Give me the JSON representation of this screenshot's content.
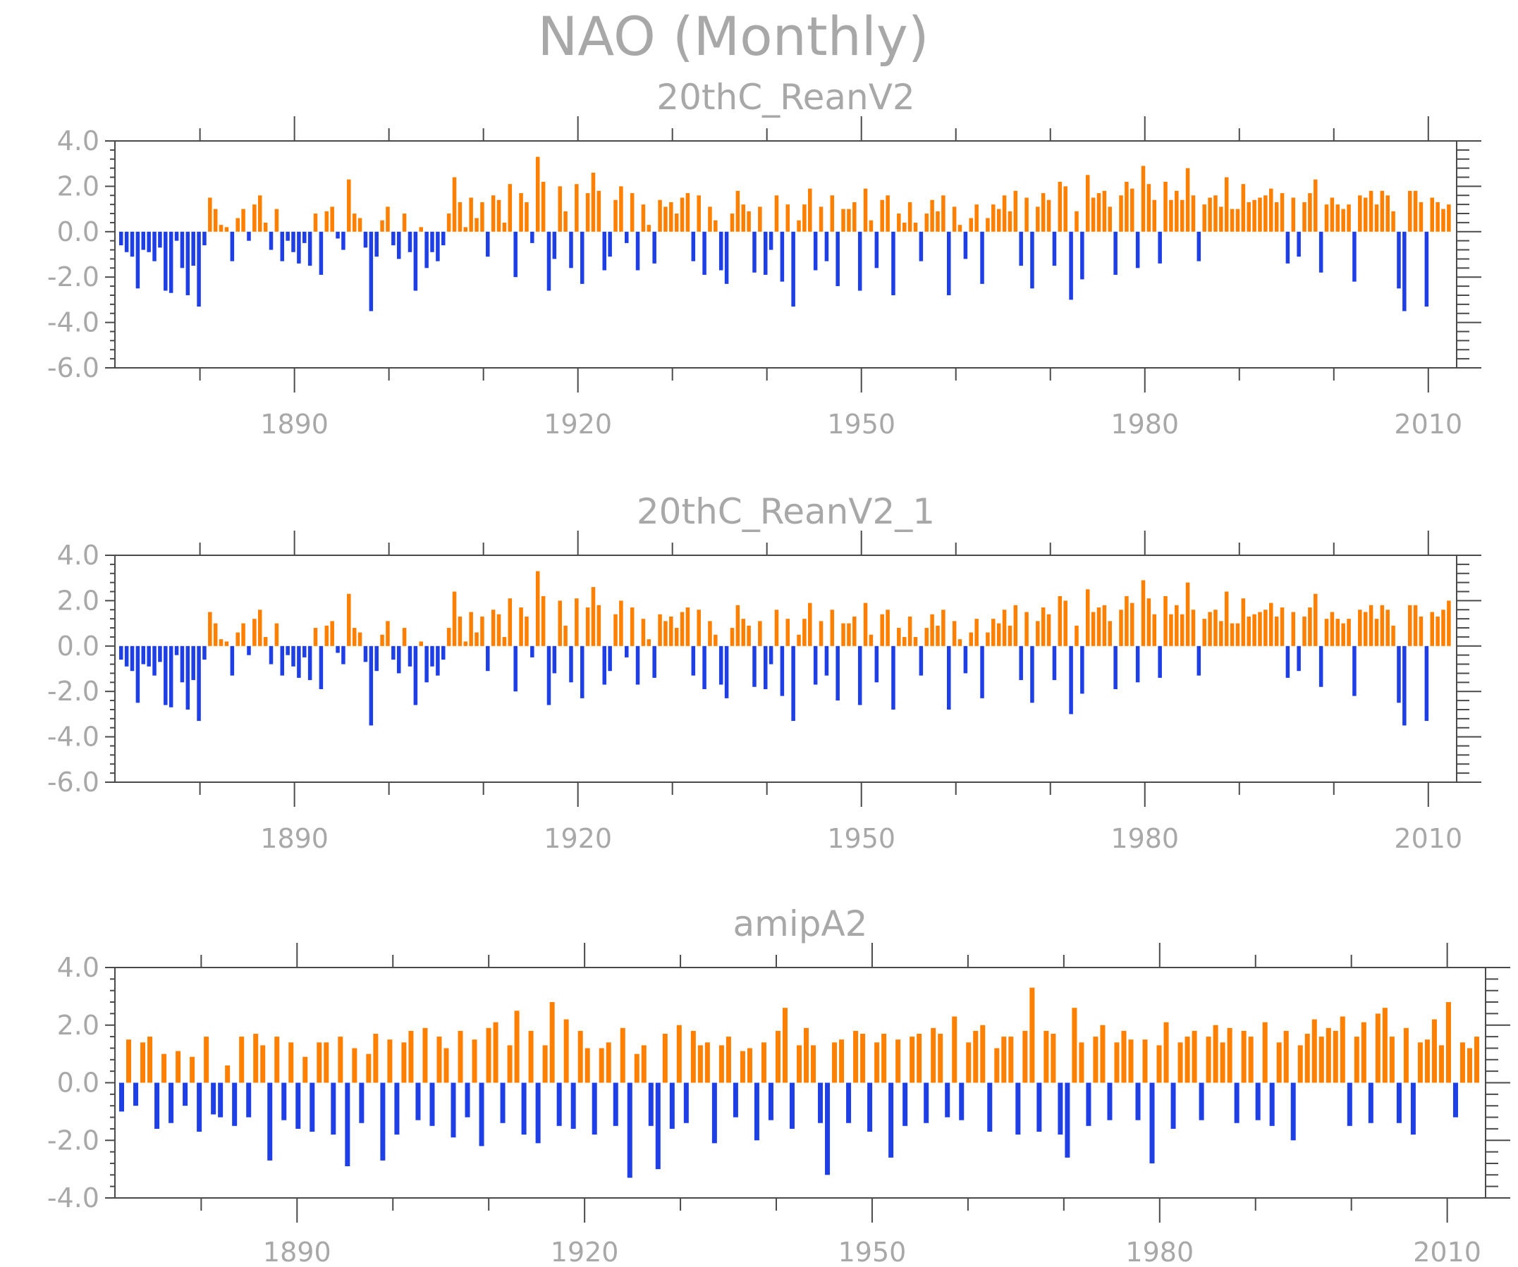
{
  "title": "NAO (Monthly)",
  "colors": {
    "positive": "#ff8000",
    "negative": "#1f3fe6",
    "axis": "#4a4a4a",
    "text": "#a8a8a8"
  },
  "chart_data": [
    {
      "type": "bar",
      "title": "20thC_ReanV2",
      "xlabel": "",
      "ylabel": "",
      "xlim": [
        1871,
        2013
      ],
      "ylim": [
        -6,
        4
      ],
      "yticks": [
        "-6.0",
        "-4.0",
        "-2.0",
        "0.0",
        "2.0",
        "4.0"
      ],
      "xticks": [
        "1890",
        "1920",
        "1950",
        "1980",
        "2010"
      ],
      "series": [
        {
          "values": [
            -0.6,
            -0.9,
            -1.1,
            -2.5,
            -0.8,
            -0.9,
            -1.3,
            -0.7,
            -2.6,
            -2.7,
            -0.4,
            -1.6,
            -2.8,
            -1.5,
            -3.3,
            -0.6,
            1.5,
            1.0,
            0.3,
            0.2,
            -1.3,
            0.6,
            1.0,
            -0.4,
            1.2,
            1.6,
            0.4,
            -0.8,
            1.0,
            -1.3,
            -0.4,
            -0.9,
            -1.4,
            -0.5,
            -1.5,
            0.8,
            -1.9,
            0.9,
            1.1,
            -0.3,
            -0.8,
            2.3,
            0.8,
            0.6,
            -0.7,
            -3.5,
            -1.1,
            0.5,
            1.1,
            -0.6,
            -1.2,
            0.8,
            -0.9,
            -2.6,
            0.2,
            -1.6,
            -0.9,
            -1.3,
            -0.6,
            0.8,
            2.4,
            1.3,
            0.2,
            1.5,
            0.6,
            1.3,
            -1.1,
            1.6,
            1.4,
            0.4,
            2.1,
            -2.0,
            1.7,
            1.3,
            -0.5,
            3.3,
            2.2,
            -2.6,
            -1.2,
            2.0,
            0.9,
            -1.6,
            2.1,
            -2.3,
            1.7,
            2.6,
            1.8,
            -1.7,
            -1.1,
            1.4,
            2.0,
            -0.5,
            1.7,
            -1.7,
            1.2,
            0.3,
            -1.4,
            1.4,
            1.1,
            1.3,
            0.8,
            1.5,
            1.7,
            -1.3,
            1.6,
            -1.9,
            1.1,
            0.5,
            -1.7,
            -2.3,
            0.8,
            1.8,
            1.2,
            0.9,
            -1.8,
            1.1,
            -1.9,
            -0.8,
            1.6,
            -2.2,
            1.2,
            -3.3,
            0.5,
            1.2,
            1.9,
            -1.7,
            1.1,
            -1.3,
            1.6,
            -2.4,
            1.0,
            1.0,
            1.3,
            -2.6,
            1.9,
            0.5,
            -1.6,
            1.4,
            1.6,
            -2.8,
            0.8,
            0.4,
            1.3,
            0.4,
            -1.3,
            0.8,
            1.4,
            0.9,
            1.6,
            -2.8,
            1.1,
            0.3,
            -1.2,
            0.6,
            1.2,
            -2.3,
            0.6,
            1.2,
            1.0,
            1.6,
            0.9,
            1.8,
            -1.5,
            1.5,
            -2.5,
            1.1,
            1.7,
            1.4,
            -1.5,
            2.2,
            2.0,
            -3.0,
            0.9,
            -2.1,
            2.5,
            1.5,
            1.7,
            1.8,
            1.1,
            -1.9,
            1.6,
            2.2,
            1.9,
            -1.6,
            2.9,
            2.1,
            1.4,
            -1.4,
            2.2,
            1.4,
            1.8,
            1.4,
            2.8,
            1.6,
            -1.3,
            1.2,
            1.5,
            1.6,
            1.1,
            2.4,
            1.0,
            1.0,
            2.1,
            1.3,
            1.4,
            1.5,
            1.6,
            1.9,
            1.3,
            1.7,
            -1.4,
            1.5,
            -1.1,
            1.3,
            1.7,
            2.3,
            -1.8,
            1.2,
            1.5,
            1.2,
            1.0,
            1.2,
            -2.2,
            1.6,
            1.5,
            1.8,
            1.2,
            1.8,
            1.6,
            0.9,
            -2.5,
            -3.5,
            1.8,
            1.8,
            1.3,
            -3.3,
            1.5,
            1.3,
            1.0,
            1.2
          ]
        }
      ]
    },
    {
      "type": "bar",
      "title": "20thC_ReanV2_1",
      "xlabel": "",
      "ylabel": "",
      "xlim": [
        1871,
        2013
      ],
      "ylim": [
        -6,
        4
      ],
      "yticks": [
        "-6.0",
        "-4.0",
        "-2.0",
        "0.0",
        "2.0",
        "4.0"
      ],
      "xticks": [
        "1890",
        "1920",
        "1950",
        "1980",
        "2010"
      ],
      "series": [
        {
          "values": [
            -0.6,
            -0.9,
            -1.1,
            -2.5,
            -0.8,
            -0.9,
            -1.3,
            -0.7,
            -2.6,
            -2.7,
            -0.4,
            -1.6,
            -2.8,
            -1.5,
            -3.3,
            -0.6,
            1.5,
            1.0,
            0.3,
            0.2,
            -1.3,
            0.6,
            1.0,
            -0.4,
            1.2,
            1.6,
            0.4,
            -0.8,
            1.0,
            -1.3,
            -0.4,
            -0.9,
            -1.4,
            -0.5,
            -1.5,
            0.8,
            -1.9,
            0.9,
            1.1,
            -0.3,
            -0.8,
            2.3,
            0.8,
            0.6,
            -0.7,
            -3.5,
            -1.1,
            0.5,
            1.1,
            -0.6,
            -1.2,
            0.8,
            -0.9,
            -2.6,
            0.2,
            -1.6,
            -0.9,
            -1.3,
            -0.6,
            0.8,
            2.4,
            1.3,
            0.2,
            1.5,
            0.6,
            1.3,
            -1.1,
            1.6,
            1.4,
            0.4,
            2.1,
            -2.0,
            1.7,
            1.3,
            -0.5,
            3.3,
            2.2,
            -2.6,
            -1.2,
            2.0,
            0.9,
            -1.6,
            2.1,
            -2.3,
            1.7,
            2.6,
            1.8,
            -1.7,
            -1.1,
            1.4,
            2.0,
            -0.5,
            1.7,
            -1.7,
            1.2,
            0.3,
            -1.4,
            1.4,
            1.1,
            1.3,
            0.8,
            1.5,
            1.7,
            -1.3,
            1.6,
            -1.9,
            1.1,
            0.5,
            -1.7,
            -2.3,
            0.8,
            1.8,
            1.2,
            0.9,
            -1.8,
            1.1,
            -1.9,
            -0.8,
            1.6,
            -2.2,
            1.2,
            -3.3,
            0.5,
            1.2,
            1.9,
            -1.7,
            1.1,
            -1.3,
            1.6,
            -2.4,
            1.0,
            1.0,
            1.3,
            -2.6,
            1.9,
            0.5,
            -1.6,
            1.4,
            1.6,
            -2.8,
            0.8,
            0.4,
            1.3,
            0.4,
            -1.3,
            0.8,
            1.4,
            0.9,
            1.6,
            -2.8,
            1.1,
            0.3,
            -1.2,
            0.6,
            1.2,
            -2.3,
            0.6,
            1.2,
            1.0,
            1.6,
            0.9,
            1.8,
            -1.5,
            1.5,
            -2.5,
            1.1,
            1.7,
            1.4,
            -1.5,
            2.2,
            2.0,
            -3.0,
            0.9,
            -2.1,
            2.5,
            1.5,
            1.7,
            1.8,
            1.1,
            -1.9,
            1.6,
            2.2,
            1.9,
            -1.6,
            2.9,
            2.1,
            1.4,
            -1.4,
            2.2,
            1.4,
            1.8,
            1.4,
            2.8,
            1.6,
            -1.3,
            1.2,
            1.5,
            1.6,
            1.1,
            2.4,
            1.0,
            1.0,
            2.1,
            1.3,
            1.4,
            1.5,
            1.6,
            1.9,
            1.3,
            1.7,
            -1.4,
            1.5,
            -1.1,
            1.3,
            1.7,
            2.3,
            -1.8,
            1.2,
            1.5,
            1.2,
            1.0,
            1.2,
            -2.2,
            1.6,
            1.5,
            1.8,
            1.2,
            1.8,
            1.6,
            0.9,
            -2.5,
            -3.5,
            1.8,
            1.8,
            1.3,
            -3.3,
            1.5,
            1.3,
            1.6,
            2.0
          ]
        }
      ]
    },
    {
      "type": "bar",
      "title": "amipA2",
      "xlabel": "",
      "ylabel": "",
      "xlim": [
        1871,
        2014
      ],
      "ylim": [
        -4,
        4
      ],
      "yticks": [
        "-4.0",
        "-2.0",
        "0.0",
        "2.0",
        "4.0"
      ],
      "xticks": [
        "1890",
        "1920",
        "1950",
        "1980",
        "2010"
      ],
      "series": [
        {
          "values": [
            -1.0,
            1.5,
            -0.8,
            1.4,
            1.6,
            -1.6,
            1.0,
            -1.4,
            1.1,
            -0.8,
            0.9,
            -1.7,
            1.6,
            -1.1,
            -1.2,
            0.6,
            -1.5,
            1.6,
            -1.2,
            1.7,
            1.3,
            -2.7,
            1.6,
            -1.3,
            1.4,
            -1.6,
            0.9,
            -1.7,
            1.4,
            1.4,
            -1.8,
            1.6,
            -2.9,
            1.2,
            -1.4,
            1.0,
            1.7,
            -2.7,
            1.5,
            -1.8,
            1.4,
            1.8,
            -1.3,
            1.9,
            -1.5,
            1.6,
            1.2,
            -1.9,
            1.8,
            -1.2,
            1.5,
            -2.2,
            1.9,
            2.1,
            -1.4,
            1.3,
            2.5,
            -1.8,
            1.8,
            -2.1,
            1.3,
            2.8,
            -1.5,
            2.2,
            -1.6,
            1.8,
            1.2,
            -1.8,
            1.2,
            1.4,
            -1.5,
            1.9,
            -3.3,
            1.0,
            1.3,
            -1.5,
            -3.0,
            1.7,
            -1.6,
            2.0,
            -1.4,
            1.8,
            1.3,
            1.4,
            -2.1,
            1.3,
            1.6,
            -1.2,
            1.1,
            1.2,
            -2.0,
            1.4,
            -1.3,
            1.8,
            2.6,
            -1.6,
            1.3,
            1.9,
            1.3,
            -1.4,
            -3.2,
            1.4,
            1.5,
            -1.4,
            1.8,
            1.7,
            -1.7,
            1.4,
            1.7,
            -2.6,
            1.5,
            -1.5,
            1.6,
            1.7,
            -1.4,
            1.9,
            1.7,
            -1.2,
            2.3,
            -1.3,
            1.4,
            1.8,
            2.0,
            -1.7,
            1.2,
            1.6,
            1.6,
            -1.8,
            1.8,
            3.3,
            -1.7,
            1.8,
            1.7,
            -1.8,
            -2.6,
            2.6,
            1.4,
            -1.5,
            1.6,
            2.0,
            -1.3,
            1.4,
            1.8,
            1.5,
            -1.3,
            1.5,
            -2.8,
            1.3,
            2.1,
            -1.6,
            1.4,
            1.6,
            1.8,
            -1.3,
            1.6,
            2.0,
            1.4,
            1.9,
            -1.4,
            1.8,
            1.6,
            -1.3,
            2.1,
            -1.5,
            1.4,
            1.8,
            -2.0,
            1.3,
            1.7,
            2.2,
            1.6,
            1.9,
            1.8,
            2.3,
            -1.5,
            1.6,
            2.1,
            -1.4,
            2.4,
            2.6,
            1.6,
            -1.4,
            1.9,
            -1.8,
            1.4,
            1.5,
            2.2,
            1.3,
            2.8,
            -1.2,
            1.4,
            1.2,
            1.6
          ]
        }
      ]
    }
  ]
}
